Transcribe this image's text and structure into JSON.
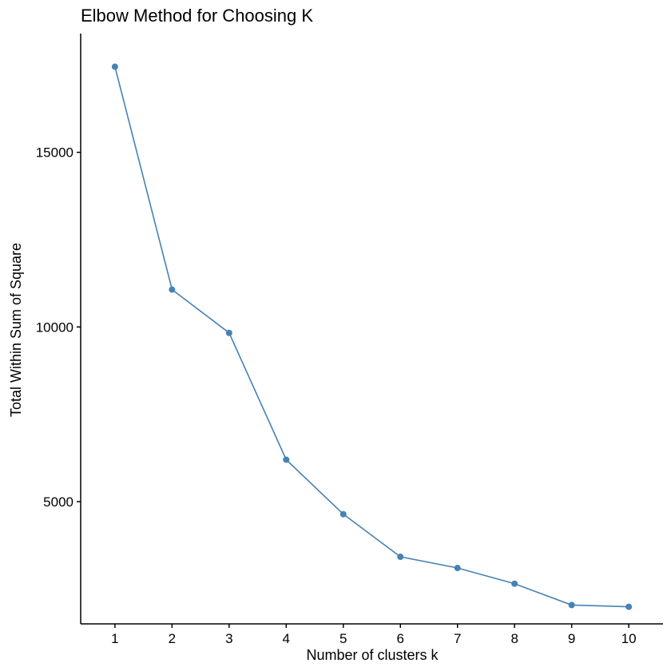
{
  "chart_data": {
    "type": "line",
    "title": "Elbow Method for Choosing K",
    "xlabel": "Number of clusters k",
    "ylabel": "Total Within Sum of Square",
    "x": [
      1,
      2,
      3,
      4,
      5,
      6,
      7,
      8,
      9,
      10
    ],
    "xticks": [
      "1",
      "2",
      "3",
      "4",
      "5",
      "6",
      "7",
      "8",
      "9",
      "10"
    ],
    "yticks": [
      "5000",
      "10000",
      "15000"
    ],
    "ytick_values": [
      5000,
      10000,
      15000
    ],
    "xlim": [
      0.4,
      10.6
    ],
    "ylim": [
      1500,
      18400
    ],
    "series": [
      {
        "values": [
          17450,
          11070,
          9830,
          6200,
          4640,
          3420,
          3100,
          2650,
          2040,
          1990
        ]
      }
    ],
    "grid": false,
    "legend": "none",
    "line_color": "#4682B4",
    "axis_color": "#000000"
  }
}
